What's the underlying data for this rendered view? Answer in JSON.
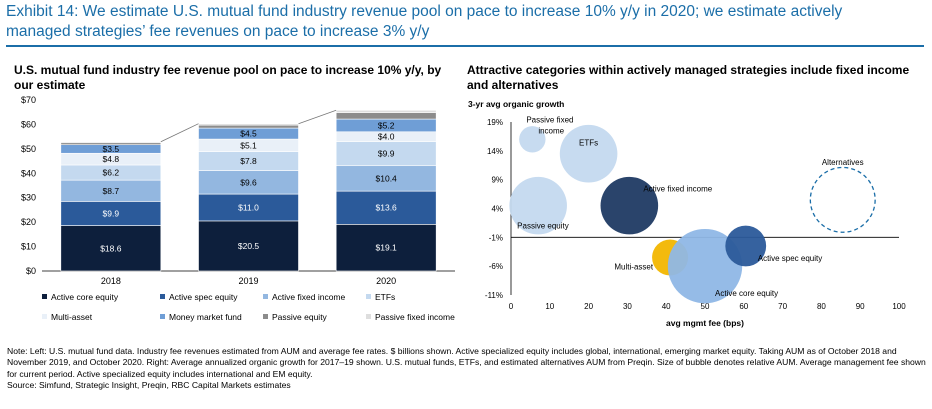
{
  "header": {
    "exhibit_title": "Exhibit 14: We estimate U.S. mutual fund industry revenue pool on pace to increase 10% y/y in 2020; we estimate actively managed strategies’ fee revenues on pace to increase 3% y/y"
  },
  "left_panel": {
    "title": "U.S. mutual fund industry fee revenue pool on pace to increase 10% y/y, by our estimate"
  },
  "right_panel": {
    "title": "Attractive categories within actively managed strategies include fixed income and alternatives"
  },
  "footnote": {
    "note": "Note: Left: U.S. mutual fund data. Industry fee revenues estimated from AUM and average fee rates. $ billions shown. Active specialized equity includes global, international, emerging market equity. Taking AUM as of October 2018 and November 2019, and October 2020. Right: Average annualized organic growth for 2017–19 shown. U.S. mutual funds, ETFs, and estimated alternatives AUM from Preqin. Size of bubble denotes relative AUM. Average management fee shown for current period. Active specialized equity includes international and EM equity.",
    "source": "Source: Simfund, Strategic Insight, Preqin, RBC Capital Markets estimates"
  },
  "chart_data": [
    {
      "type": "bar",
      "stacked": true,
      "categories": [
        "2018",
        "2019",
        "2020"
      ],
      "ylim": [
        0,
        70
      ],
      "yticks": [
        "$0",
        "$10",
        "$20",
        "$30",
        "$40",
        "$50",
        "$60",
        "$70"
      ],
      "series": [
        {
          "name": "Active core equity",
          "color": "#0d1f3c",
          "values": [
            18.6,
            20.5,
            19.1
          ],
          "labels": [
            "$18.6",
            "$20.5",
            "$19.1"
          ],
          "label_color": "#ffffff"
        },
        {
          "name": "Active spec equity",
          "color": "#2b5a9a",
          "values": [
            9.9,
            11.0,
            13.6
          ],
          "labels": [
            "$9.9",
            "$11.0",
            "$13.6"
          ],
          "label_color": "#ffffff"
        },
        {
          "name": "Active fixed income",
          "color": "#93b7e0",
          "values": [
            8.7,
            9.6,
            10.4
          ],
          "labels": [
            "$8.7",
            "$9.6",
            "$10.4"
          ],
          "label_color": "#000000"
        },
        {
          "name": "ETFs",
          "color": "#c4d9ef",
          "values": [
            6.2,
            7.8,
            9.9
          ],
          "labels": [
            "$6.2",
            "$7.8",
            "$9.9"
          ],
          "label_color": "#000000"
        },
        {
          "name": "Multi-asset",
          "color": "#e9f0f8",
          "values": [
            4.8,
            5.1,
            4.0
          ],
          "labels": [
            "$4.8",
            "$5.1",
            "$4.0"
          ],
          "label_color": "#000000"
        },
        {
          "name": "Money market fund",
          "color": "#6f9ed6",
          "values": [
            3.5,
            4.5,
            5.2
          ],
          "labels": [
            "$3.5",
            "$4.5",
            "$5.2"
          ],
          "label_color": "#000000"
        },
        {
          "name": "Passive equity",
          "color": "#8c8c8c",
          "values": [
            0.8,
            1.2,
            2.6
          ],
          "labels": [],
          "label_color": "#000000"
        },
        {
          "name": "Passive fixed income",
          "color": "#dedede",
          "values": [
            0.4,
            0.6,
            1.0
          ],
          "labels": [],
          "label_color": "#000000"
        }
      ],
      "legend_position": "bottom"
    },
    {
      "type": "scatter",
      "subtype": "bubble",
      "ylabel": "3-yr avg organic growth",
      "xlabel": "avg mgmt fee (bps)",
      "xlim": [
        0,
        100
      ],
      "ylim": [
        -11,
        19
      ],
      "xticks": [
        "0",
        "10",
        "20",
        "30",
        "40",
        "50",
        "60",
        "70",
        "80",
        "90",
        "100"
      ],
      "yticks": [
        "19%",
        "14%",
        "9%",
        "4%",
        "-1%",
        "-6%",
        "-11%"
      ],
      "points": [
        {
          "label": "Passive fixed income",
          "x": 5.5,
          "y": 16,
          "size": 0.55,
          "color": "#c4d9ef",
          "dashed": false
        },
        {
          "label": "ETFs",
          "x": 20,
          "y": 13.5,
          "size": 1.2,
          "color": "#c4d9ef",
          "dashed": false
        },
        {
          "label": "Passive equity",
          "x": 7,
          "y": 4.5,
          "size": 1.2,
          "color": "#c4d9ef",
          "dashed": false
        },
        {
          "label": "Active fixed income",
          "x": 30.5,
          "y": 4.5,
          "size": 1.2,
          "color": "#1f3a63",
          "dashed": false
        },
        {
          "label": "Alternatives",
          "x": 85.5,
          "y": 5.5,
          "size": 1.35,
          "color": "#1b6ea8",
          "dashed": true
        },
        {
          "label": "Multi-asset",
          "x": 41,
          "y": -4.5,
          "size": 0.75,
          "color": "#f2b600",
          "dashed": false
        },
        {
          "label": "Active core equity",
          "x": 50,
          "y": -6,
          "size": 1.55,
          "color": "#8fb7e6",
          "dashed": false
        },
        {
          "label": "Active spec equity",
          "x": 60.5,
          "y": -2.5,
          "size": 0.85,
          "color": "#2b5a9a",
          "dashed": false
        }
      ]
    }
  ]
}
